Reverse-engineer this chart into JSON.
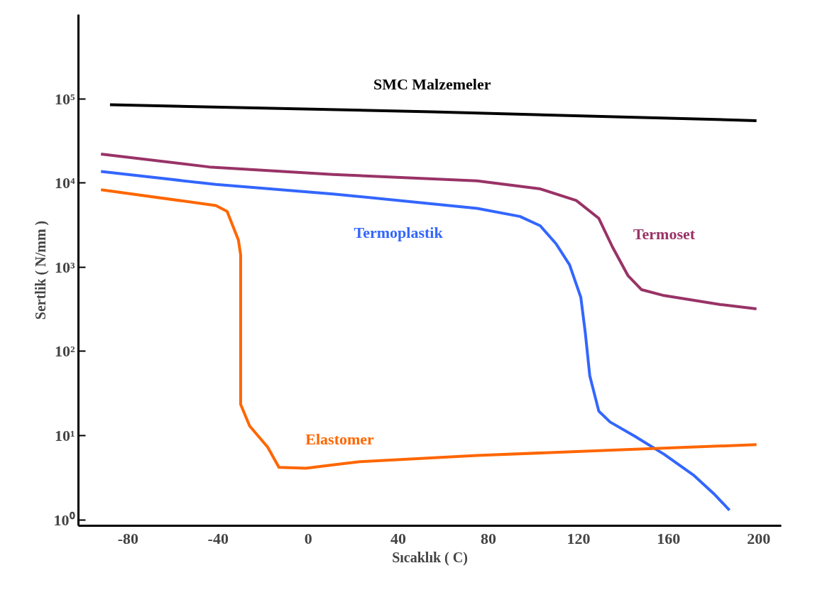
{
  "chart_data": {
    "type": "line",
    "xlabel": "Sıcaklık ( C)",
    "ylabel": "Sertlik ( N/mm )",
    "log": "y",
    "xlim": [
      -102,
      210
    ],
    "ylim": [
      0.85,
      1000000
    ],
    "xticks": [
      -80,
      -40,
      0,
      40,
      80,
      120,
      160,
      200
    ],
    "yticks": [
      {
        "value": 1,
        "label": "10⁰"
      },
      {
        "value": 10,
        "label": "10¹"
      },
      {
        "value": 100,
        "label": "10²"
      },
      {
        "value": 1000,
        "label": "10³"
      },
      {
        "value": 10000,
        "label": "10⁴"
      },
      {
        "value": 100000,
        "label": "10⁵"
      }
    ],
    "grid": false,
    "marker": "none",
    "line_style": "solid",
    "series": [
      {
        "name": "SMC Malzemeler",
        "color": "#000000",
        "x": [
          -88,
          55,
          199
        ],
        "values": [
          85000,
          70000,
          55000
        ]
      },
      {
        "name": "Termoset",
        "color": "#993366",
        "x": [
          -92,
          -44,
          11,
          75,
          103,
          119,
          129,
          135,
          142,
          148,
          158,
          183,
          199
        ],
        "values": [
          22000,
          15500,
          12600,
          10600,
          8500,
          6200,
          3800,
          1750,
          790,
          540,
          460,
          360,
          320
        ]
      },
      {
        "name": "Termoplastik",
        "color": "#3366ff",
        "x": [
          -92,
          -41,
          11,
          75,
          94,
          103,
          110,
          116,
          121,
          123,
          125,
          129,
          134,
          145,
          158,
          171,
          180,
          187
        ],
        "values": [
          13700,
          9600,
          7400,
          5000,
          4000,
          3100,
          1900,
          1070,
          440,
          166,
          51,
          19.5,
          14.5,
          9.8,
          6.0,
          3.4,
          2.05,
          1.3
        ]
      },
      {
        "name": "Elastomer",
        "color": "#ff6600",
        "x": [
          -92,
          -41,
          -36,
          -31,
          -30,
          -30,
          -30,
          -26,
          -18,
          -13,
          -1,
          11,
          23,
          75,
          139,
          199
        ],
        "values": [
          8300,
          5400,
          4600,
          2100,
          1400,
          93,
          23.5,
          13,
          7.3,
          4.2,
          4.1,
          4.5,
          4.9,
          5.8,
          6.8,
          7.8
        ]
      }
    ]
  }
}
